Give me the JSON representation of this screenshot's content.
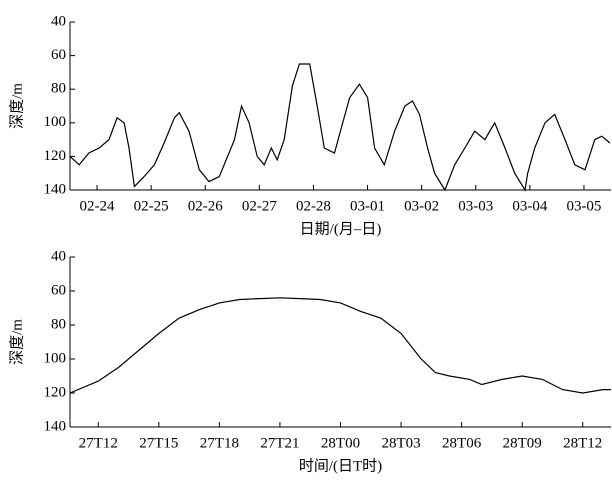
{
  "chart_data": [
    {
      "type": "line",
      "y_label": "深度/m",
      "x_label": "日期/(月–日)",
      "xlim": [
        -0.5,
        9.5
      ],
      "ylim": [
        40,
        140
      ],
      "y_inverted": true,
      "yticks": [
        40,
        60,
        80,
        100,
        120,
        140
      ],
      "xticks": [
        {
          "value": 0,
          "label": "02-24"
        },
        {
          "value": 1,
          "label": "02-25"
        },
        {
          "value": 2,
          "label": "02-26"
        },
        {
          "value": 3,
          "label": "02-27"
        },
        {
          "value": 4,
          "label": "02-28"
        },
        {
          "value": 5,
          "label": "03-01"
        },
        {
          "value": 6,
          "label": "03-02"
        },
        {
          "value": 7,
          "label": "03-03"
        },
        {
          "value": 8,
          "label": "03-04"
        },
        {
          "value": 9,
          "label": "03-05"
        }
      ],
      "x": [
        -0.5,
        -0.33,
        -0.15,
        0.04,
        0.22,
        0.37,
        0.5,
        0.59,
        0.69,
        0.87,
        1.06,
        1.24,
        1.43,
        1.52,
        1.7,
        1.89,
        2.07,
        2.26,
        2.54,
        2.67,
        2.81,
        2.96,
        3.09,
        3.22,
        3.33,
        3.46,
        3.61,
        3.74,
        3.93,
        4.07,
        4.2,
        4.39,
        4.54,
        4.67,
        4.85,
        5.0,
        5.13,
        5.31,
        5.5,
        5.69,
        5.83,
        5.96,
        6.11,
        6.24,
        6.43,
        6.61,
        6.8,
        6.98,
        7.17,
        7.35,
        7.54,
        7.72,
        7.91,
        7.96,
        8.09,
        8.28,
        8.46,
        8.65,
        8.83,
        9.02,
        9.2,
        9.33,
        9.48
      ],
      "series": [
        {
          "color": "#000000",
          "values": [
            120,
            125,
            118,
            115,
            110,
            97,
            100,
            115,
            138,
            132,
            125,
            112,
            97,
            94,
            105,
            128,
            135,
            132,
            110,
            90,
            100,
            120,
            125,
            115,
            122,
            110,
            78,
            65,
            65,
            90,
            115,
            118,
            100,
            85,
            77,
            85,
            115,
            125,
            105,
            90,
            87,
            95,
            115,
            130,
            140,
            125,
            115,
            105,
            110,
            100,
            115,
            130,
            140,
            130,
            115,
            100,
            95,
            110,
            125,
            128,
            110,
            108,
            112
          ]
        }
      ]
    },
    {
      "type": "line",
      "y_label": "深度/m",
      "x_label": "时间/(日T时)",
      "xlim": [
        -1.4,
        25.4
      ],
      "ylim": [
        40,
        140
      ],
      "y_inverted": true,
      "yticks": [
        40,
        60,
        80,
        100,
        120,
        140
      ],
      "xticks": [
        {
          "value": 0,
          "label": "27T12"
        },
        {
          "value": 3,
          "label": "27T15"
        },
        {
          "value": 6,
          "label": "27T18"
        },
        {
          "value": 9,
          "label": "27T21"
        },
        {
          "value": 12,
          "label": "28T00"
        },
        {
          "value": 15,
          "label": "28T03"
        },
        {
          "value": 18,
          "label": "28T06"
        },
        {
          "value": 21,
          "label": "28T09"
        },
        {
          "value": 24,
          "label": "28T12"
        }
      ],
      "x": [
        -1.4,
        0,
        1,
        2,
        3,
        4,
        5,
        6,
        7,
        8,
        9,
        10,
        11,
        12,
        13,
        14,
        15,
        16,
        16.7,
        17.4,
        18.4,
        19,
        20,
        21,
        22,
        23,
        24,
        25,
        25.4
      ],
      "series": [
        {
          "color": "#000000",
          "values": [
            120,
            113,
            105,
            95,
            85,
            76,
            71,
            67,
            65,
            64.5,
            64,
            64.5,
            65,
            67,
            72,
            76,
            85,
            100,
            108,
            110,
            112,
            115,
            112,
            110,
            112,
            118,
            120,
            118,
            118
          ]
        }
      ]
    }
  ]
}
